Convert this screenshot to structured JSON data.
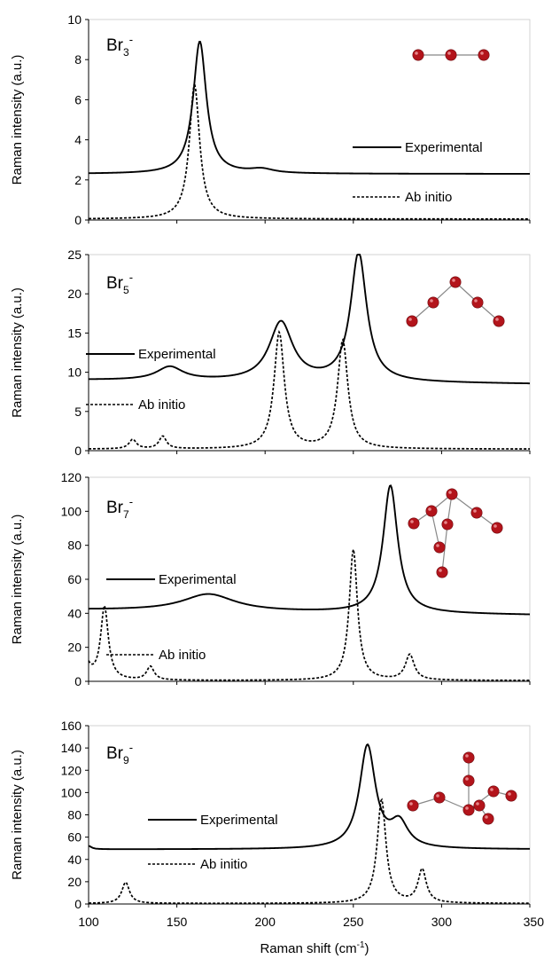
{
  "xlabel": "Raman shift (cm",
  "xlabel_sup": "-1",
  "xlabel_end": ")",
  "xticks": [
    "100",
    "150",
    "200",
    "250",
    "300",
    "350"
  ],
  "colors": {
    "line": "#000000",
    "atom": "#b3141b",
    "bond": "#888888"
  },
  "chart_data": [
    {
      "type": "line",
      "species": "Br",
      "species_sub": "3",
      "species_sup": "-",
      "ylabel": "Raman intensity (a.u.)",
      "xlim": [
        100,
        350
      ],
      "ylim": [
        0,
        10
      ],
      "yticks": [
        "0",
        "2",
        "4",
        "6",
        "8",
        "10"
      ],
      "molecule": "linear",
      "series": [
        {
          "name": "Experimental",
          "style": "solid",
          "baseline": 2.3,
          "peaks": [
            {
              "center": 163,
              "height": 6.6,
              "width": 4.5
            },
            {
              "center": 198,
              "height": 0.2,
              "width": 8
            }
          ]
        },
        {
          "name": "Ab initio",
          "style": "dashed",
          "baseline": 0.05,
          "peaks": [
            {
              "center": 160,
              "height": 6.7,
              "width": 3.5
            }
          ]
        }
      ]
    },
    {
      "type": "line",
      "species": "Br",
      "species_sub": "5",
      "species_sup": "-",
      "ylabel": "Raman intensity (a.u.)",
      "xlim": [
        100,
        350
      ],
      "ylim": [
        0,
        25
      ],
      "yticks": [
        "0",
        "5",
        "10",
        "15",
        "20",
        "25"
      ],
      "molecule": "v-shape",
      "series": [
        {
          "name": "Experimental",
          "style": "solid",
          "baseline": 9.0,
          "baseline_end": 8.5,
          "peaks": [
            {
              "center": 146,
              "height": 1.7,
              "width": 9
            },
            {
              "center": 209,
              "height": 7.5,
              "width": 8
            },
            {
              "center": 253,
              "height": 16.4,
              "width": 5.5
            }
          ]
        },
        {
          "name": "Ab initio",
          "style": "dashed",
          "baseline": 0.2,
          "peaks": [
            {
              "center": 125,
              "height": 1.2,
              "width": 2.5
            },
            {
              "center": 142,
              "height": 1.6,
              "width": 2.5
            },
            {
              "center": 208,
              "height": 14.8,
              "width": 3.5
            },
            {
              "center": 244,
              "height": 13.8,
              "width": 3.5
            }
          ]
        }
      ]
    },
    {
      "type": "line",
      "species": "Br",
      "species_sub": "7",
      "species_sup": "-",
      "ylabel": "Raman intensity (a.u.)",
      "xlim": [
        100,
        350
      ],
      "ylim": [
        0,
        120
      ],
      "yticks": [
        "0",
        "20",
        "40",
        "60",
        "80",
        "100",
        "120"
      ],
      "molecule": "branched",
      "series": [
        {
          "name": "Experimental",
          "style": "solid",
          "baseline": 42,
          "baseline_end": 39,
          "peaks": [
            {
              "center": 168,
              "height": 10,
              "width": 18
            },
            {
              "center": 271,
              "height": 75,
              "width": 5
            }
          ]
        },
        {
          "name": "Ab initio",
          "style": "dashed",
          "baseline": 0.5,
          "peaks": [
            {
              "center": 98,
              "height": 12,
              "width": 3
            },
            {
              "center": 109,
              "height": 43,
              "width": 2.6
            },
            {
              "center": 135,
              "height": 8,
              "width": 2.5
            },
            {
              "center": 250,
              "height": 77,
              "width": 2.8
            },
            {
              "center": 282,
              "height": 15,
              "width": 3
            }
          ]
        }
      ]
    },
    {
      "type": "line",
      "species": "Br",
      "species_sub": "9",
      "species_sup": "-",
      "ylabel": "Raman intensity (a.u.)",
      "xlim": [
        100,
        350
      ],
      "ylim": [
        0,
        160
      ],
      "yticks": [
        "0",
        "20",
        "40",
        "60",
        "80",
        "100",
        "120",
        "140",
        "160"
      ],
      "molecule": "star",
      "series": [
        {
          "name": "Experimental",
          "style": "solid",
          "baseline": 49,
          "peaks": [
            {
              "center": 100,
              "height": 3,
              "width": 2
            },
            {
              "center": 258,
              "height": 92,
              "width": 5.5
            },
            {
              "center": 276,
              "height": 22,
              "width": 6
            }
          ]
        },
        {
          "name": "Ab initio",
          "style": "dashed",
          "baseline": 0.5,
          "peaks": [
            {
              "center": 121,
              "height": 19,
              "width": 2.6
            },
            {
              "center": 266,
              "height": 93,
              "width": 3
            },
            {
              "center": 289,
              "height": 30,
              "width": 2.8
            }
          ]
        }
      ]
    }
  ]
}
